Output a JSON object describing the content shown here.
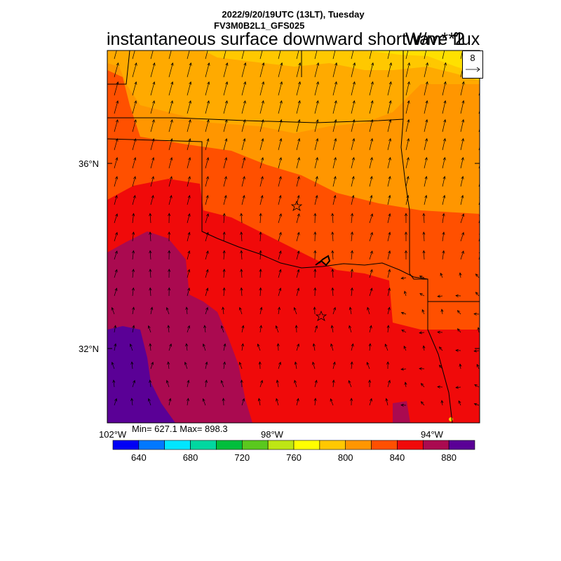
{
  "header": {
    "datetime": "2022/9/20/19UTC (13LT), Tuesday",
    "model": "FV3M0B2L1_GFS025",
    "title": "instantaneous surface downward shortwave flux",
    "units": "W/m**2"
  },
  "vector_reference": {
    "label": "8"
  },
  "lat_labels": [
    "36°N",
    "32°N"
  ],
  "lon_labels": [
    "102°W",
    "98°W",
    "94°W"
  ],
  "stats": {
    "text": "Min= 627.1 Max= 898.3"
  },
  "colorbar": {
    "colors": [
      "#0000f5",
      "#0078ff",
      "#00e6ff",
      "#00d7a0",
      "#00be3c",
      "#5ac81e",
      "#bee614",
      "#ffff00",
      "#ffc800",
      "#ff9600",
      "#ff5000",
      "#f00a0a",
      "#aa0a50",
      "#5a0096"
    ],
    "labels": [
      "640",
      "680",
      "720",
      "760",
      "800",
      "840",
      "880"
    ]
  },
  "map": {
    "field_colors": {
      "yellow": "#ffd200",
      "lightorange": "#ffaa00",
      "orange": "#ff8c00",
      "redorange": "#ff5000",
      "red": "#f00a0a",
      "maroon": "#aa0a50",
      "purple": "#5a0096"
    },
    "city_markers": [
      "star",
      "star"
    ]
  }
}
